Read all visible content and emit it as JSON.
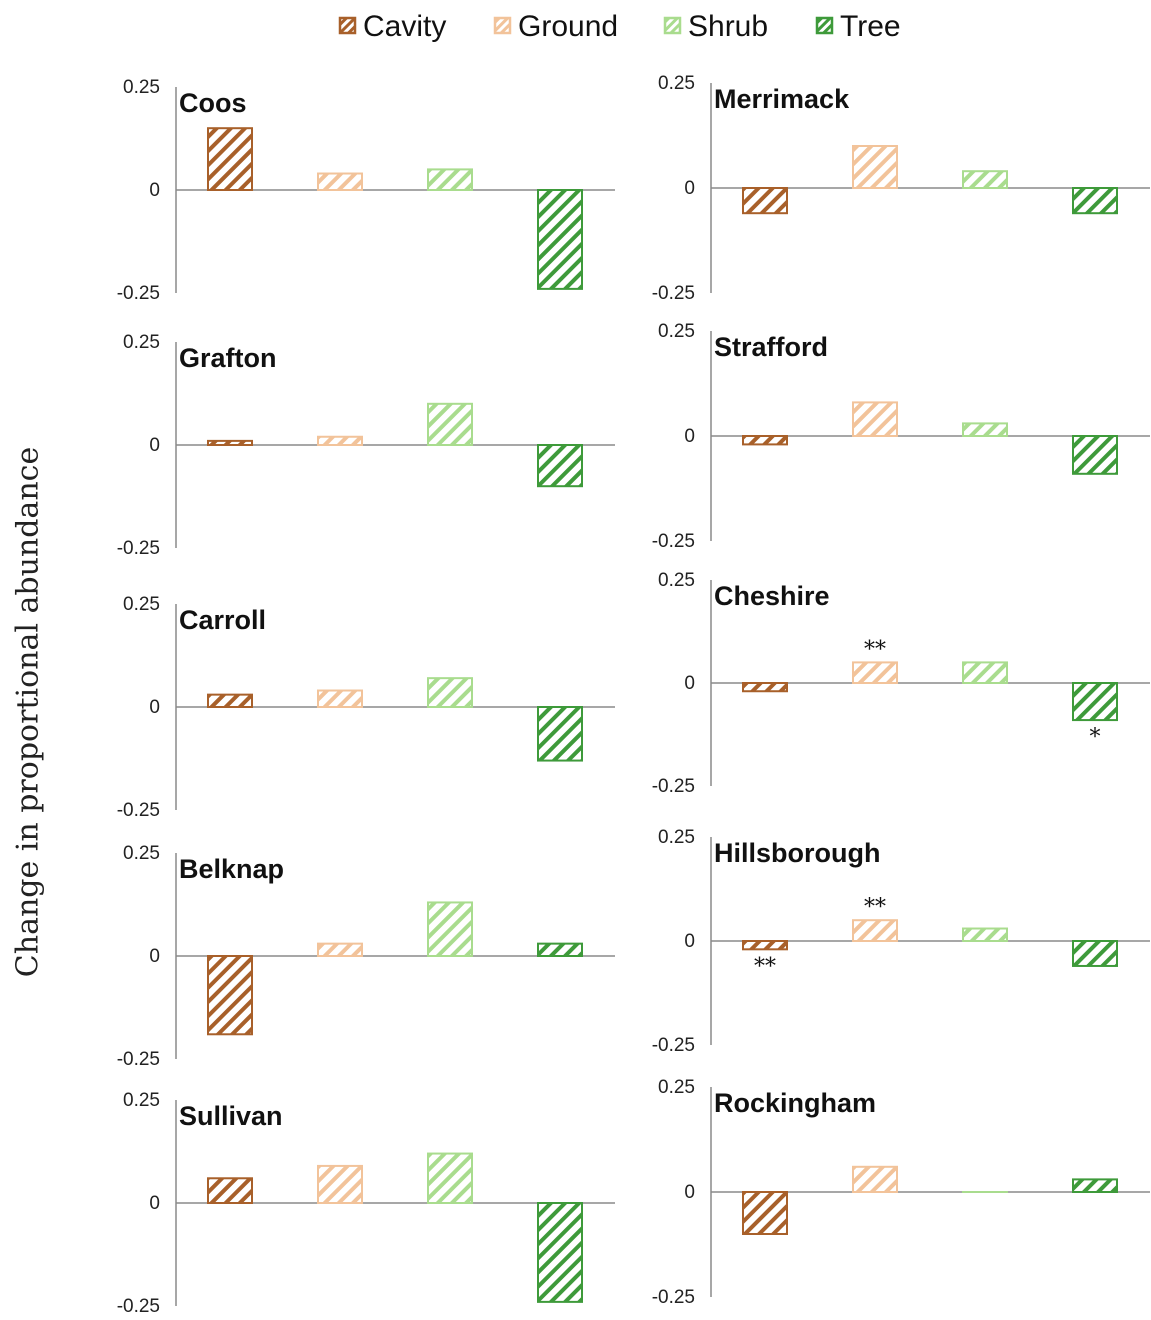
{
  "legend_title": "",
  "ylabel": "Change in proportional abundance",
  "colors": {
    "Cavity": "#a8602a",
    "Ground": "#f2c39a",
    "Shrub": "#a9dc8e",
    "Tree": "#3e9a3a"
  },
  "chart_data": {
    "type": "bar",
    "categories": [
      "Cavity",
      "Ground",
      "Shrub",
      "Tree"
    ],
    "ylabel": "Change in proportional abundance",
    "ylim": [
      -0.25,
      0.25
    ],
    "yticks": [
      "0.25",
      "0",
      "-0.25"
    ],
    "grid": false,
    "legend": "top-center",
    "panels": [
      {
        "title": "Coos",
        "values": [
          0.15,
          0.04,
          0.05,
          -0.24
        ],
        "annotations": [
          "",
          "",
          "",
          ""
        ]
      },
      {
        "title": "Merrimack",
        "values": [
          -0.06,
          0.1,
          0.04,
          -0.06
        ],
        "annotations": [
          "",
          "",
          "",
          ""
        ]
      },
      {
        "title": "Grafton",
        "values": [
          0.01,
          0.02,
          0.1,
          -0.1
        ],
        "annotations": [
          "",
          "",
          "",
          ""
        ]
      },
      {
        "title": "Strafford",
        "values": [
          -0.02,
          0.08,
          0.03,
          -0.09
        ],
        "annotations": [
          "",
          "",
          "",
          ""
        ]
      },
      {
        "title": "Carroll",
        "values": [
          0.03,
          0.04,
          0.07,
          -0.13
        ],
        "annotations": [
          "",
          "",
          "",
          ""
        ]
      },
      {
        "title": "Cheshire",
        "values": [
          -0.02,
          0.05,
          0.05,
          -0.09
        ],
        "annotations": [
          "",
          "**",
          "",
          "*"
        ]
      },
      {
        "title": "Belknap",
        "values": [
          -0.19,
          0.03,
          0.13,
          0.03
        ],
        "annotations": [
          "",
          "",
          "",
          ""
        ]
      },
      {
        "title": "Hillsborough",
        "values": [
          -0.02,
          0.05,
          0.03,
          -0.06
        ],
        "annotations": [
          "**",
          "**",
          "",
          ""
        ]
      },
      {
        "title": "Sullivan",
        "values": [
          0.06,
          0.09,
          0.12,
          -0.24
        ],
        "annotations": [
          "",
          "",
          "",
          ""
        ]
      },
      {
        "title": "Rockingham",
        "values": [
          -0.1,
          0.06,
          0.0,
          0.03
        ],
        "annotations": [
          "",
          "",
          "",
          ""
        ]
      }
    ]
  }
}
